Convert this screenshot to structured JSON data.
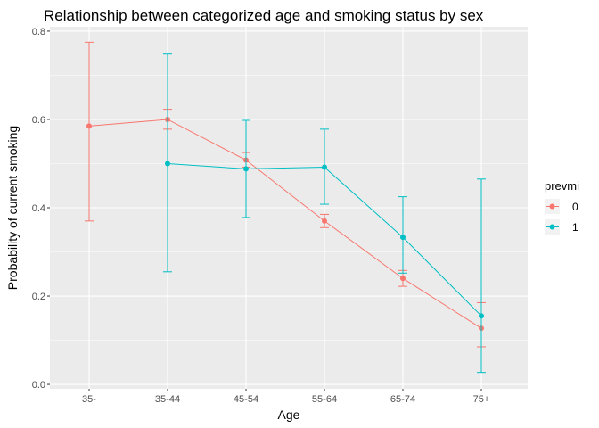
{
  "chart_data": {
    "type": "line",
    "title": "Relationship between categorized age and smoking status by sex",
    "xlabel": "Age",
    "ylabel": "Probability of current smoking",
    "categories": [
      "35-",
      "35-44",
      "45-54",
      "55-64",
      "65-74",
      "75+"
    ],
    "y_ticks": [
      0.0,
      0.2,
      0.4,
      0.6,
      0.8
    ],
    "y_tick_labels": [
      "0.0",
      "0.2",
      "0.4",
      "0.6",
      "0.8"
    ],
    "ylim": [
      -0.01,
      0.81
    ],
    "grid": true,
    "legend": {
      "title": "prevmi",
      "placement": "right"
    },
    "series": [
      {
        "name": "0",
        "color": "#F8766D",
        "values": [
          0.585,
          0.6,
          0.508,
          0.37,
          0.24,
          0.127
        ],
        "lower": [
          0.37,
          0.578,
          0.492,
          0.355,
          0.222,
          0.085
        ],
        "upper": [
          0.775,
          0.623,
          0.525,
          0.385,
          0.258,
          0.185
        ]
      },
      {
        "name": "1",
        "color": "#00BFC4",
        "values": [
          null,
          0.5,
          0.488,
          0.492,
          0.333,
          0.155
        ],
        "lower": [
          null,
          0.255,
          0.378,
          0.408,
          0.252,
          0.027
        ],
        "upper": [
          null,
          0.748,
          0.598,
          0.578,
          0.425,
          0.465
        ]
      }
    ]
  }
}
